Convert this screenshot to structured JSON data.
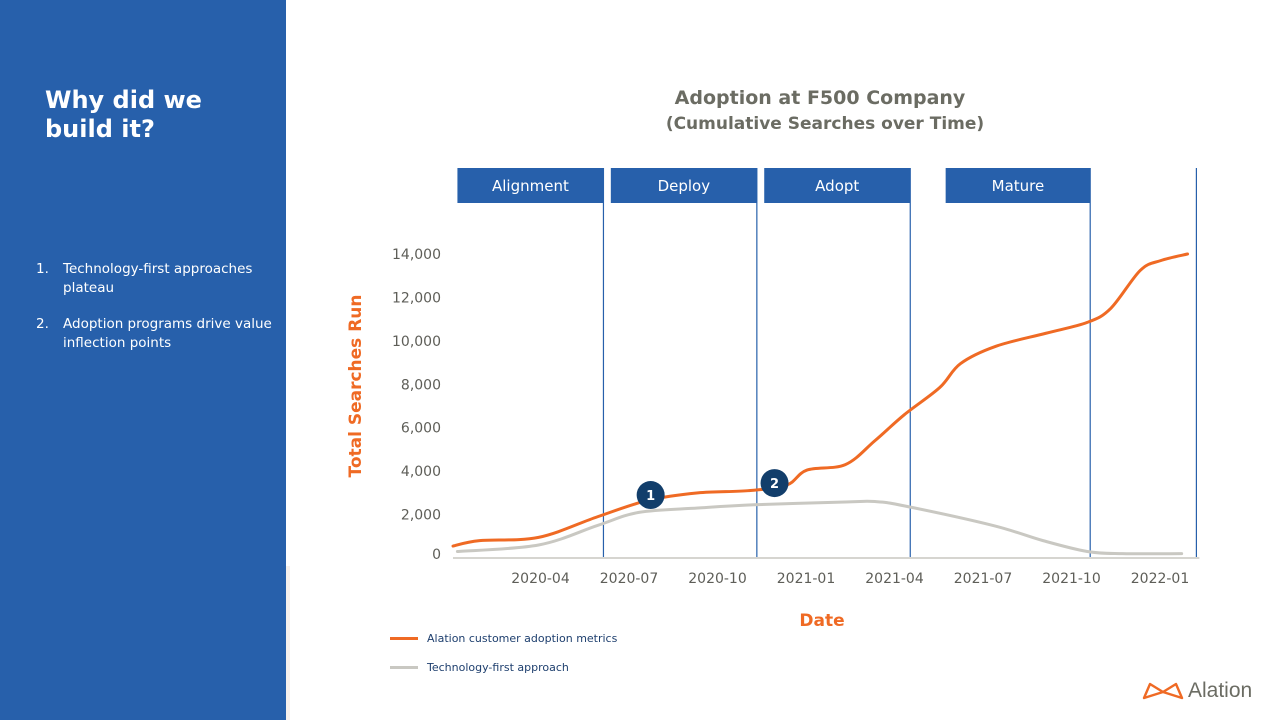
{
  "sidebar": {
    "title": "Why did we build it?",
    "points": [
      {
        "num": "1.",
        "text": "Technology-first approaches plateau"
      },
      {
        "num": "2.",
        "text": "Adoption programs drive value inflection points"
      }
    ]
  },
  "logo": {
    "icon": "alation-bowtie-icon",
    "text": "Alation"
  },
  "colors": {
    "sidebar": "#2760ab",
    "phase": "#2760ab",
    "orange": "#ef6a24",
    "gray": "#c9c8c2",
    "marker": "#123e6b"
  },
  "chart_data": {
    "type": "line",
    "title": "Adoption at F500 Company",
    "subtitle": "(Cumulative Searches over Time)",
    "xlabel": "Date",
    "ylabel": "Total Searches Run",
    "ylim": [
      0,
      14000
    ],
    "yticks": [
      0,
      2000,
      4000,
      6000,
      8000,
      10000,
      12000,
      14000
    ],
    "ytick_labels": [
      "0",
      "2,000",
      "4,000",
      "6,000",
      "8,000",
      "10,000",
      "12,000",
      "14,000"
    ],
    "xlim_months": [
      0,
      25.3
    ],
    "x_unit": "months since 2020-01",
    "xticks": [
      3,
      6,
      9,
      12,
      15,
      18,
      21,
      24
    ],
    "xtick_labels": [
      "2020-04",
      "2020-07",
      "2020-10",
      "2021-01",
      "2021-04",
      "2021-07",
      "2021-10",
      "2022-01"
    ],
    "grid": false,
    "legend_position": "bottom-left",
    "phases": [
      {
        "label": "Alignment",
        "start": 0.15,
        "end": 5.1
      },
      {
        "label": "Deploy",
        "start": 5.35,
        "end": 10.3
      },
      {
        "label": "Adopt",
        "start": 10.55,
        "end": 15.5
      },
      {
        "label": "Mature",
        "start": 16.7,
        "end": 21.6
      }
    ],
    "phase_lines": [
      5.1,
      10.3,
      15.5,
      21.6,
      25.2
    ],
    "series": [
      {
        "name": "Alation customer adoption metrics",
        "color": "#ef6a24",
        "x": [
          0,
          0.9,
          2.9,
          4.9,
          6.6,
          8.3,
          10.0,
          11.3,
          12.0,
          13.3,
          14.3,
          15.3,
          16.5,
          17.2,
          18.4,
          20.1,
          21.5,
          22.3,
          23.3,
          24.0,
          24.9
        ],
        "y": [
          550,
          800,
          950,
          1900,
          2650,
          3000,
          3100,
          3350,
          4050,
          4300,
          5400,
          6600,
          7850,
          8950,
          9750,
          10350,
          10850,
          11500,
          13250,
          13700,
          14000
        ]
      },
      {
        "name": "Technology-first approach",
        "color": "#c9c8c2",
        "x": [
          0.15,
          2.9,
          4.9,
          6.3,
          8.3,
          10.2,
          13.3,
          14.3,
          15.3,
          18.3,
          20.0,
          21.5,
          22.7,
          24.7
        ],
        "y": [
          300,
          600,
          1500,
          2100,
          2300,
          2450,
          2580,
          2600,
          2400,
          1500,
          800,
          300,
          200,
          200
        ]
      }
    ],
    "annotations": [
      {
        "label": "1",
        "x": 6.7,
        "y": 2900
      },
      {
        "label": "2",
        "x": 10.9,
        "y": 3450
      }
    ]
  }
}
